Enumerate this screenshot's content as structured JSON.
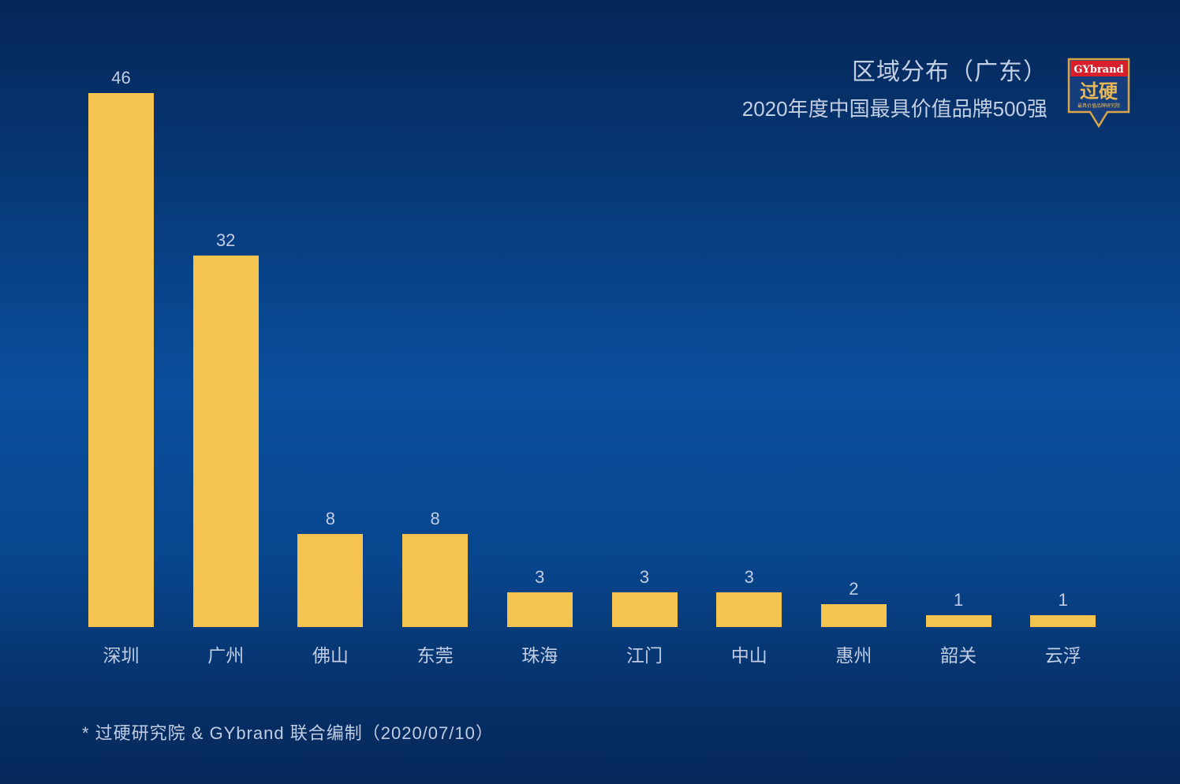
{
  "header": {
    "title": "区域分布（广东）",
    "subtitle": "2020年度中国最具价值品牌500强"
  },
  "logo": {
    "brand": "GYbrand",
    "chinese_name": "过硬",
    "tagline": "最具价值品牌研究院",
    "colors": {
      "top": "#d7202c",
      "body": "#163e7c",
      "border": "#d9a54a",
      "text": "#e8b858"
    }
  },
  "footer": {
    "note": "* 过硬研究院 & GYbrand 联合编制（2020/07/10）"
  },
  "colors": {
    "bar": "#f4c350",
    "text": "#c0cde3"
  },
  "chart_data": {
    "type": "bar",
    "title": "区域分布（广东）",
    "subtitle": "2020年度中国最具价值品牌500强",
    "categories": [
      "深圳",
      "广州",
      "佛山",
      "东莞",
      "珠海",
      "江门",
      "中山",
      "惠州",
      "韶关",
      "云浮"
    ],
    "values": [
      46,
      32,
      8,
      8,
      3,
      3,
      3,
      2,
      1,
      1
    ],
    "xlabel": "",
    "ylabel": "",
    "ylim": [
      0,
      46
    ],
    "grid": false,
    "legend": null,
    "data_labels": true
  }
}
